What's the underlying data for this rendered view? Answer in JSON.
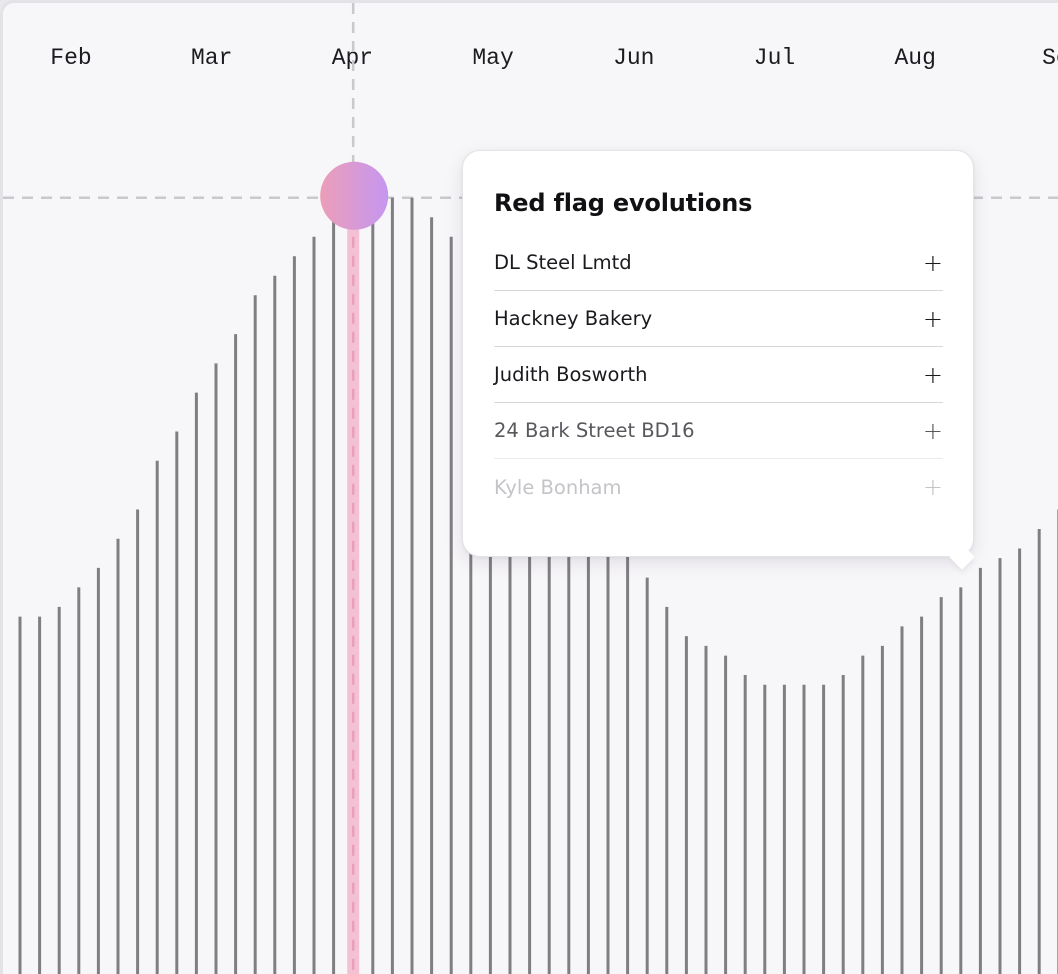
{
  "chart_data": {
    "type": "bar",
    "x_axis_labels": [
      "Feb",
      "Mar",
      "Apr",
      "May",
      "Jun",
      "Jul",
      "Aug",
      "Se"
    ],
    "bars_per_month": 7,
    "ylim": [
      0,
      100
    ],
    "values": [
      37,
      37,
      38,
      40,
      42,
      45,
      48,
      53,
      56,
      60,
      63,
      66,
      70,
      72,
      74,
      76,
      78,
      80,
      80,
      80,
      80,
      78,
      76,
      73,
      69,
      65,
      62,
      58,
      55,
      51,
      48,
      44,
      41,
      38,
      35,
      34,
      33,
      31,
      30,
      30,
      30,
      30,
      31,
      33,
      34,
      36,
      37,
      39,
      40,
      42,
      43,
      44,
      46,
      48,
      49,
      50,
      53
    ],
    "highlight_index": 17,
    "highlight_month": "Apr",
    "grid": "dashed crosshair at highlighted point",
    "colors": {
      "bar": "#807e83",
      "highlight_band": "#f3c1d3",
      "marker_gradient": [
        "#ec9eb8",
        "#c596f0"
      ],
      "crosshair": "#c9c8cc"
    }
  },
  "tooltip": {
    "title": "Red flag evolutions",
    "items": [
      {
        "label": "DL Steel Lmtd",
        "action": "+"
      },
      {
        "label": "Hackney Bakery",
        "action": "+"
      },
      {
        "label": "Judith Bosworth",
        "action": "+"
      },
      {
        "label": "24 Bark Street BD16",
        "action": "+"
      },
      {
        "label": "Kyle Bonham",
        "action": "+"
      }
    ]
  }
}
